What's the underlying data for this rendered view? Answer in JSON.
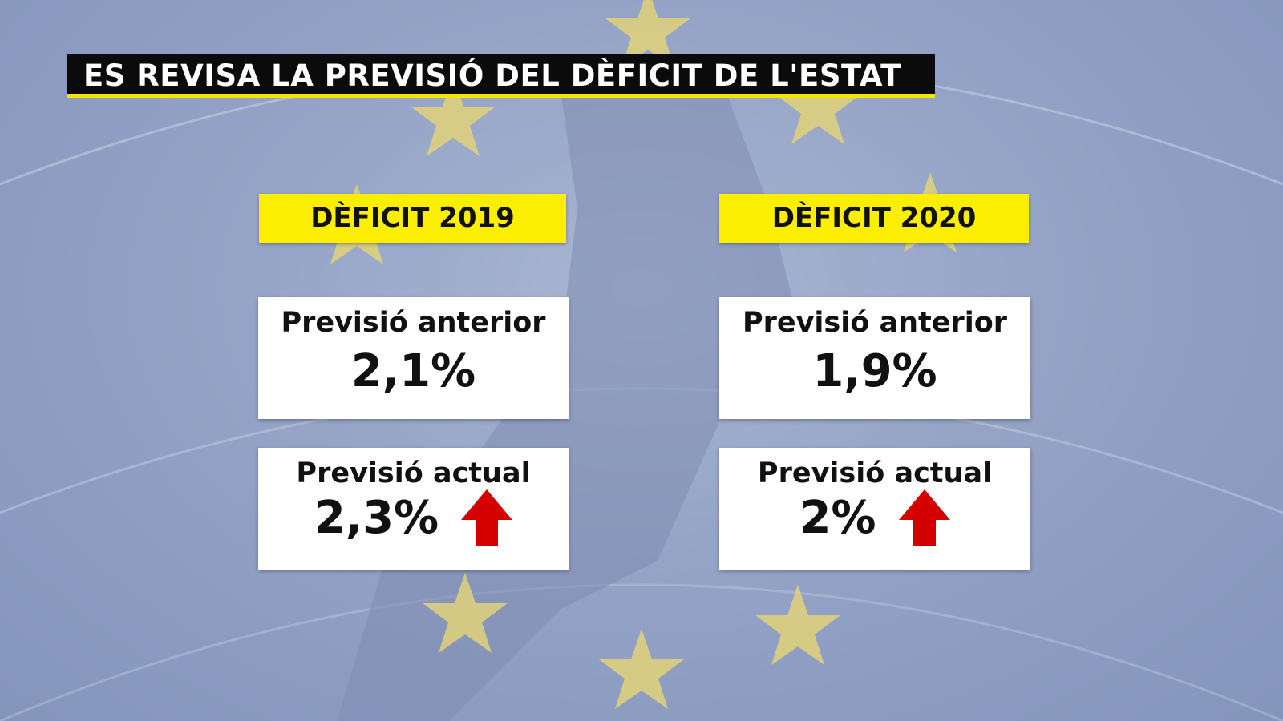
{
  "title": "ES REVISA LA PREVISIÓ DEL DÈFICIT DE L'ESTAT",
  "colors": {
    "accent_yellow": "#fbee00",
    "arrow_red": "#d40000",
    "title_bg": "#0b0b0b"
  },
  "columns": [
    {
      "label": "DÈFICIT 2019",
      "previous_caption": "Previsió anterior",
      "previous_value": "2,1%",
      "current_caption": "Previsió actual",
      "current_value": "2,3%",
      "trend_icon": "arrow-up-icon"
    },
    {
      "label": "DÈFICIT 2020",
      "previous_caption": "Previsió anterior",
      "previous_value": "1,9%",
      "current_caption": "Previsió actual",
      "current_value": "2%",
      "trend_icon": "arrow-up-icon"
    }
  ]
}
